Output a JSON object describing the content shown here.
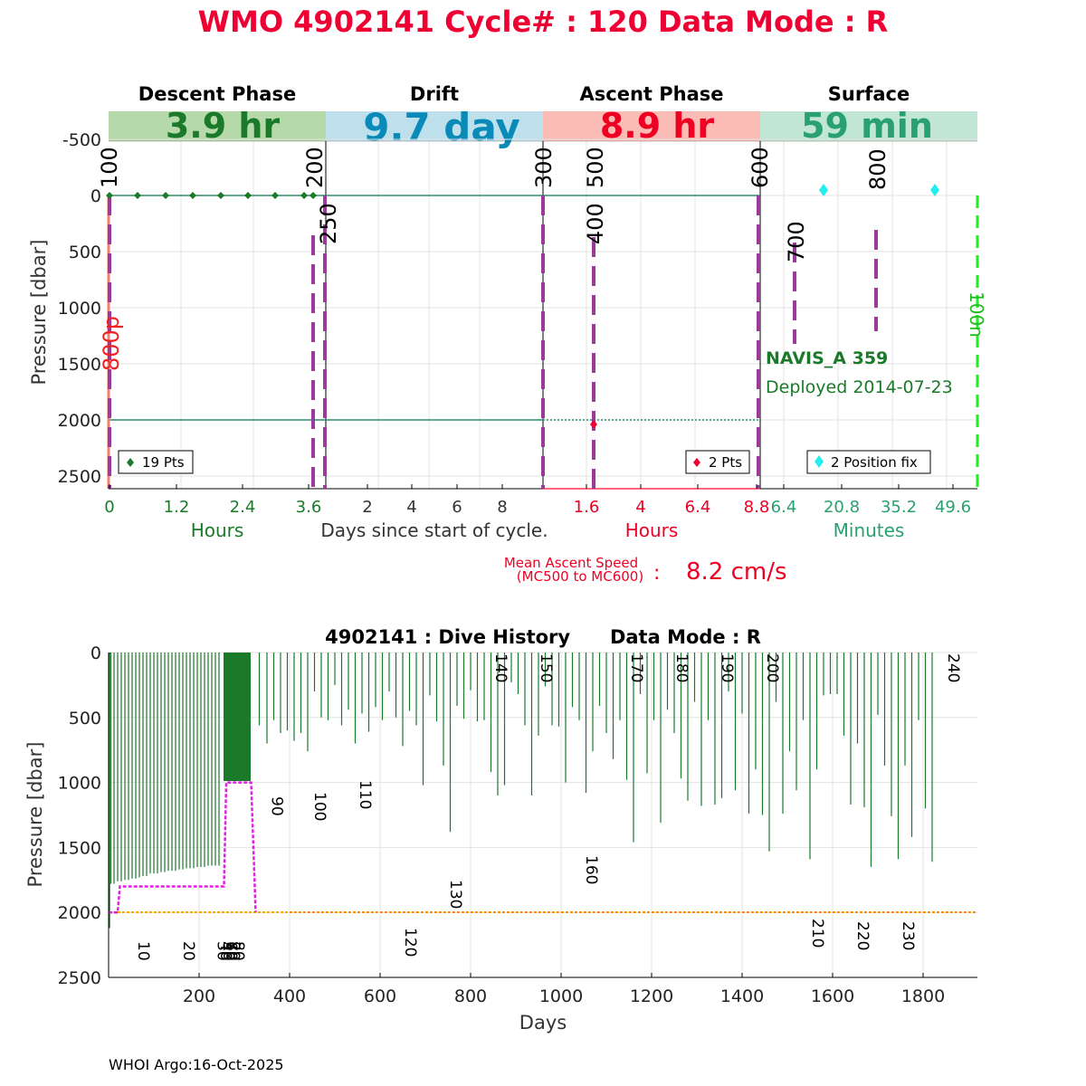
{
  "title": "WMO 4902141   Cycle# : 120   Data Mode : R",
  "colors": {
    "title": "#ee0033",
    "descent": "#1a7a2a",
    "drift": "#0a8ab8",
    "ascent": "#ee0022",
    "surface": "#2aa070",
    "dashed_marker": "#9a3a9a",
    "green_line": "#2a8f6a",
    "history_bar": "#1a7a2a",
    "history_magenta": "#e020e0",
    "history_orange": "#ffa500"
  },
  "top_panel": {
    "ylabel": "Pressure [dbar]",
    "y_ticks": [
      "-500",
      "0",
      "500",
      "1000",
      "1500",
      "2000",
      "2500"
    ],
    "phases": [
      {
        "name": "Descent Phase",
        "duration": "3.9 hr",
        "bg": "#b5d9a8",
        "fg": "#1a7a2a"
      },
      {
        "name": "Drift",
        "duration": "9.7 day",
        "bg": "#bde0ec",
        "fg": "#0a8ab8"
      },
      {
        "name": "Ascent Phase",
        "duration": "8.9 hr",
        "bg": "#fbbcb6",
        "fg": "#ee0022"
      },
      {
        "name": "Surface",
        "duration": "59 min",
        "bg": "#c2e6d5",
        "fg": "#2aa070"
      }
    ],
    "descent_ticks": [
      "0",
      "1.2",
      "2.4",
      "3.6"
    ],
    "drift_ticks": [
      "2",
      "4",
      "6",
      "8"
    ],
    "ascent_ticks": [
      "1.6",
      "4",
      "6.4",
      "8.8"
    ],
    "surface_ticks": [
      "6.4",
      "20.8",
      "35.2",
      "49.6"
    ],
    "xlabel_descent": "Hours",
    "xlabel_drift": "Days since start of cycle.",
    "xlabel_ascent": "Hours",
    "xlabel_surface": "Minutes",
    "mission_codes": [
      "100",
      "200",
      "250",
      "300",
      "500",
      "400",
      "600",
      "700",
      "800"
    ],
    "side_label_left": "800p",
    "side_label_right": "100n",
    "legend_descent": "19 Pts",
    "legend_ascent": "2 Pts",
    "legend_surface": "2 Position fix",
    "float_name": "NAVIS_A 359",
    "deployed": "Deployed 2014-07-23",
    "mean_ascent_label_1": "Mean Ascent Speed",
    "mean_ascent_label_2": "(MC500 to MC600)",
    "mean_ascent_colon": ":",
    "mean_ascent_value": "8.2 cm/s"
  },
  "bottom_panel": {
    "title": "4902141 : Dive History      Data Mode : R",
    "ylabel": "Pressure [dbar]",
    "xlabel": "Days",
    "y_ticks": [
      "0",
      "500",
      "1000",
      "1500",
      "2000",
      "2500"
    ],
    "x_ticks": [
      "200",
      "400",
      "600",
      "800",
      "1000",
      "1200",
      "1400",
      "1600",
      "1800"
    ],
    "cycle_labels": [
      "10",
      "20",
      "30",
      "40",
      "50",
      "60",
      "70",
      "80",
      "90",
      "100",
      "110",
      "120",
      "130",
      "140",
      "150",
      "160",
      "170",
      "180",
      "190",
      "200",
      "210",
      "220",
      "230",
      "240"
    ]
  },
  "chart_data": [
    {
      "type": "line",
      "title": "WMO 4902141   Cycle# : 120   Data Mode : R",
      "ylabel": "Pressure [dbar]",
      "ylim": [
        -500,
        2600
      ],
      "y_reversed": true,
      "descent_pressure_points": [
        {
          "x": 0,
          "y": 0
        },
        {
          "x": 3.6,
          "y": 0
        }
      ],
      "descent_point_count": 19,
      "ascent_points": [
        {
          "x": 1.8,
          "y": 2050
        }
      ],
      "ascent_point_count": 2,
      "position_fix_count": 2,
      "mean_ascent_speed_cm_s": 8.2
    },
    {
      "type": "bar",
      "title": "4902141 : Dive History      Data Mode : R",
      "xlabel": "Days",
      "ylabel": "Pressure [dbar]",
      "xlim": [
        0,
        1920
      ],
      "ylim": [
        0,
        2500
      ],
      "y_reversed": true,
      "park_pressure_step": [
        [
          0,
          2000
        ],
        [
          20,
          2000
        ],
        [
          25,
          1800
        ],
        [
          255,
          1800
        ],
        [
          260,
          1000
        ],
        [
          315,
          1000
        ],
        [
          325,
          2000
        ]
      ],
      "profile_pressure": 2000,
      "cycle_label_days": [
        {
          "cycle": 10,
          "day": 80
        },
        {
          "cycle": 20,
          "day": 180
        },
        {
          "cycle": 30,
          "day": 255
        },
        {
          "cycle": 40,
          "day": 265
        },
        {
          "cycle": 50,
          "day": 272
        },
        {
          "cycle": 60,
          "day": 278
        },
        {
          "cycle": 70,
          "day": 285
        },
        {
          "cycle": 80,
          "day": 295
        },
        {
          "cycle": 90,
          "day": 375
        },
        {
          "cycle": 100,
          "day": 470
        },
        {
          "cycle": 110,
          "day": 570
        },
        {
          "cycle": 120,
          "day": 670
        },
        {
          "cycle": 130,
          "day": 770
        },
        {
          "cycle": 140,
          "day": 870
        },
        {
          "cycle": 150,
          "day": 970
        },
        {
          "cycle": 160,
          "day": 1070
        },
        {
          "cycle": 170,
          "day": 1170
        },
        {
          "cycle": 180,
          "day": 1270
        },
        {
          "cycle": 190,
          "day": 1370
        },
        {
          "cycle": 200,
          "day": 1470
        },
        {
          "cycle": 210,
          "day": 1570
        },
        {
          "cycle": 220,
          "day": 1670
        },
        {
          "cycle": 230,
          "day": 1770
        },
        {
          "cycle": 240,
          "day": 1870
        }
      ],
      "bars": [
        {
          "day": 5,
          "depth": 1780
        },
        {
          "day": 12,
          "depth": 1780
        },
        {
          "day": 20,
          "depth": 1760
        },
        {
          "day": 28,
          "depth": 1760
        },
        {
          "day": 36,
          "depth": 1750
        },
        {
          "day": 44,
          "depth": 1750
        },
        {
          "day": 52,
          "depth": 1740
        },
        {
          "day": 60,
          "depth": 1740
        },
        {
          "day": 68,
          "depth": 1730
        },
        {
          "day": 76,
          "depth": 1720
        },
        {
          "day": 84,
          "depth": 1720
        },
        {
          "day": 92,
          "depth": 1700
        },
        {
          "day": 100,
          "depth": 1700
        },
        {
          "day": 108,
          "depth": 1700
        },
        {
          "day": 116,
          "depth": 1690
        },
        {
          "day": 124,
          "depth": 1690
        },
        {
          "day": 132,
          "depth": 1680
        },
        {
          "day": 140,
          "depth": 1680
        },
        {
          "day": 148,
          "depth": 1680
        },
        {
          "day": 156,
          "depth": 1670
        },
        {
          "day": 164,
          "depth": 1670
        },
        {
          "day": 172,
          "depth": 1660
        },
        {
          "day": 180,
          "depth": 1660
        },
        {
          "day": 188,
          "depth": 1660
        },
        {
          "day": 196,
          "depth": 1650
        },
        {
          "day": 204,
          "depth": 1650
        },
        {
          "day": 212,
          "depth": 1650
        },
        {
          "day": 220,
          "depth": 1640
        },
        {
          "day": 228,
          "depth": 1640
        },
        {
          "day": 236,
          "depth": 1640
        },
        {
          "day": 244,
          "depth": 1640
        },
        {
          "day": 333,
          "depth": 560
        },
        {
          "day": 350,
          "depth": 700
        },
        {
          "day": 365,
          "depth": 520
        },
        {
          "day": 380,
          "depth": 620
        },
        {
          "day": 395,
          "depth": 600
        },
        {
          "day": 410,
          "depth": 680
        },
        {
          "day": 425,
          "depth": 620
        },
        {
          "day": 440,
          "depth": 760
        },
        {
          "day": 455,
          "depth": 300
        },
        {
          "day": 470,
          "depth": 500
        },
        {
          "day": 485,
          "depth": 520
        },
        {
          "day": 500,
          "depth": 250
        },
        {
          "day": 515,
          "depth": 560
        },
        {
          "day": 530,
          "depth": 440
        },
        {
          "day": 545,
          "depth": 700
        },
        {
          "day": 560,
          "depth": 470
        },
        {
          "day": 575,
          "depth": 610
        },
        {
          "day": 590,
          "depth": 420
        },
        {
          "day": 605,
          "depth": 520
        },
        {
          "day": 620,
          "depth": 300
        },
        {
          "day": 635,
          "depth": 500
        },
        {
          "day": 650,
          "depth": 720
        },
        {
          "day": 665,
          "depth": 450
        },
        {
          "day": 680,
          "depth": 560
        },
        {
          "day": 695,
          "depth": 1020
        },
        {
          "day": 710,
          "depth": 330
        },
        {
          "day": 725,
          "depth": 530
        },
        {
          "day": 740,
          "depth": 870
        },
        {
          "day": 755,
          "depth": 1380
        },
        {
          "day": 770,
          "depth": 410
        },
        {
          "day": 785,
          "depth": 510
        },
        {
          "day": 800,
          "depth": 290
        },
        {
          "day": 815,
          "depth": 530
        },
        {
          "day": 830,
          "depth": 520
        },
        {
          "day": 845,
          "depth": 920
        },
        {
          "day": 860,
          "depth": 1100
        },
        {
          "day": 875,
          "depth": 1020
        },
        {
          "day": 890,
          "depth": 230
        },
        {
          "day": 905,
          "depth": 320
        },
        {
          "day": 920,
          "depth": 560
        },
        {
          "day": 935,
          "depth": 1100
        },
        {
          "day": 950,
          "depth": 640
        },
        {
          "day": 965,
          "depth": 260
        },
        {
          "day": 980,
          "depth": 560
        },
        {
          "day": 995,
          "depth": 570
        },
        {
          "day": 1010,
          "depth": 1000
        },
        {
          "day": 1025,
          "depth": 420
        },
        {
          "day": 1040,
          "depth": 520
        },
        {
          "day": 1055,
          "depth": 1080
        },
        {
          "day": 1070,
          "depth": 760
        },
        {
          "day": 1085,
          "depth": 410
        },
        {
          "day": 1100,
          "depth": 620
        },
        {
          "day": 1115,
          "depth": 820
        },
        {
          "day": 1130,
          "depth": 520
        },
        {
          "day": 1145,
          "depth": 980
        },
        {
          "day": 1160,
          "depth": 1460
        },
        {
          "day": 1175,
          "depth": 320
        },
        {
          "day": 1190,
          "depth": 930
        },
        {
          "day": 1205,
          "depth": 520
        },
        {
          "day": 1220,
          "depth": 1310
        },
        {
          "day": 1235,
          "depth": 440
        },
        {
          "day": 1250,
          "depth": 620
        },
        {
          "day": 1265,
          "depth": 970
        },
        {
          "day": 1280,
          "depth": 1140
        },
        {
          "day": 1295,
          "depth": 380
        },
        {
          "day": 1310,
          "depth": 1180
        },
        {
          "day": 1325,
          "depth": 520
        },
        {
          "day": 1340,
          "depth": 1170
        },
        {
          "day": 1355,
          "depth": 1120
        },
        {
          "day": 1370,
          "depth": 300
        },
        {
          "day": 1385,
          "depth": 1060
        },
        {
          "day": 1400,
          "depth": 470
        },
        {
          "day": 1415,
          "depth": 1240
        },
        {
          "day": 1430,
          "depth": 900
        },
        {
          "day": 1445,
          "depth": 1250
        },
        {
          "day": 1460,
          "depth": 1530
        },
        {
          "day": 1475,
          "depth": 380
        },
        {
          "day": 1490,
          "depth": 1240
        },
        {
          "day": 1505,
          "depth": 760
        },
        {
          "day": 1520,
          "depth": 1060
        },
        {
          "day": 1535,
          "depth": 520
        },
        {
          "day": 1550,
          "depth": 1590
        },
        {
          "day": 1565,
          "depth": 900
        },
        {
          "day": 1580,
          "depth": 330
        },
        {
          "day": 1595,
          "depth": 320
        },
        {
          "day": 1610,
          "depth": 320
        },
        {
          "day": 1625,
          "depth": 640
        },
        {
          "day": 1640,
          "depth": 1170
        },
        {
          "day": 1655,
          "depth": 700
        },
        {
          "day": 1670,
          "depth": 1190
        },
        {
          "day": 1685,
          "depth": 1650
        },
        {
          "day": 1700,
          "depth": 480
        },
        {
          "day": 1715,
          "depth": 870
        },
        {
          "day": 1730,
          "depth": 1260
        },
        {
          "day": 1745,
          "depth": 1590
        },
        {
          "day": 1760,
          "depth": 870
        },
        {
          "day": 1775,
          "depth": 1420
        },
        {
          "day": 1790,
          "depth": 520
        },
        {
          "day": 1805,
          "depth": 1200
        },
        {
          "day": 1820,
          "depth": 1610
        }
      ]
    }
  ],
  "footer": "WHOI Argo:16-Oct-2025"
}
